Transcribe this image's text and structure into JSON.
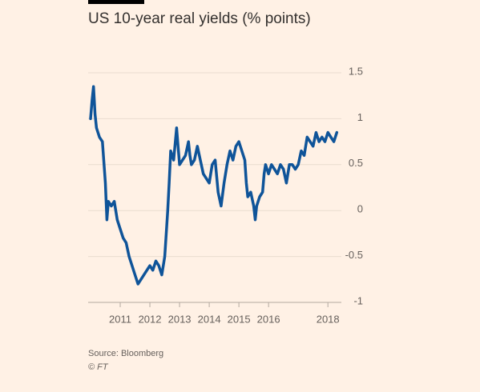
{
  "chart_data": {
    "type": "line",
    "title": "US 10-year real yields (% points)",
    "source": "Source: Bloomberg",
    "credit": "© FT",
    "xlim": [
      2010,
      2018.4
    ],
    "xticks": [
      2011,
      2012,
      2013,
      2014,
      2015,
      2016,
      2018
    ],
    "ylim": [
      -1,
      1.5
    ],
    "yticks": [
      1.5,
      1,
      0.5,
      0,
      -0.5,
      -1
    ],
    "grid": true,
    "series": [
      {
        "name": "US 10-year real yield",
        "color": "#0f5499",
        "x": [
          2010.0,
          2010.05,
          2010.1,
          2010.15,
          2010.2,
          2010.3,
          2010.4,
          2010.5,
          2010.55,
          2010.6,
          2010.7,
          2010.8,
          2010.9,
          2011.0,
          2011.1,
          2011.2,
          2011.3,
          2011.4,
          2011.5,
          2011.6,
          2011.7,
          2011.8,
          2011.9,
          2012.0,
          2012.1,
          2012.2,
          2012.3,
          2012.4,
          2012.5,
          2012.6,
          2012.65,
          2012.7,
          2012.8,
          2012.9,
          2012.95,
          2013.0,
          2013.1,
          2013.2,
          2013.3,
          2013.35,
          2013.4,
          2013.5,
          2013.6,
          2013.7,
          2013.8,
          2013.9,
          2014.0,
          2014.1,
          2014.2,
          2014.3,
          2014.4,
          2014.5,
          2014.6,
          2014.7,
          2014.8,
          2014.9,
          2015.0,
          2015.1,
          2015.2,
          2015.25,
          2015.3,
          2015.4,
          2015.5,
          2015.55,
          2015.6,
          2015.7,
          2015.8,
          2015.85,
          2015.9,
          2016.0,
          2016.1,
          2016.2,
          2016.3,
          2016.4,
          2016.5,
          2016.6,
          2016.7,
          2016.8,
          2016.9,
          2017.0,
          2017.1,
          2017.2,
          2017.3,
          2017.4,
          2017.5,
          2017.6,
          2017.7,
          2017.8,
          2017.9,
          2018.0,
          2018.1,
          2018.2,
          2018.3
        ],
        "values": [
          1.0,
          1.2,
          1.35,
          1.05,
          0.9,
          0.8,
          0.75,
          0.3,
          -0.1,
          0.1,
          0.05,
          0.1,
          -0.1,
          -0.2,
          -0.3,
          -0.35,
          -0.5,
          -0.6,
          -0.7,
          -0.8,
          -0.75,
          -0.7,
          -0.65,
          -0.6,
          -0.65,
          -0.55,
          -0.6,
          -0.7,
          -0.5,
          0.0,
          0.3,
          0.65,
          0.55,
          0.9,
          0.7,
          0.5,
          0.55,
          0.6,
          0.75,
          0.6,
          0.5,
          0.55,
          0.7,
          0.55,
          0.4,
          0.35,
          0.3,
          0.5,
          0.55,
          0.2,
          0.05,
          0.3,
          0.5,
          0.65,
          0.55,
          0.7,
          0.75,
          0.65,
          0.55,
          0.3,
          0.15,
          0.2,
          0.05,
          -0.1,
          0.05,
          0.15,
          0.2,
          0.4,
          0.5,
          0.4,
          0.5,
          0.45,
          0.4,
          0.5,
          0.45,
          0.3,
          0.5,
          0.5,
          0.45,
          0.5,
          0.65,
          0.6,
          0.8,
          0.75,
          0.7,
          0.85,
          0.75,
          0.8,
          0.75,
          0.85,
          0.8,
          0.75,
          0.85
        ]
      }
    ]
  }
}
